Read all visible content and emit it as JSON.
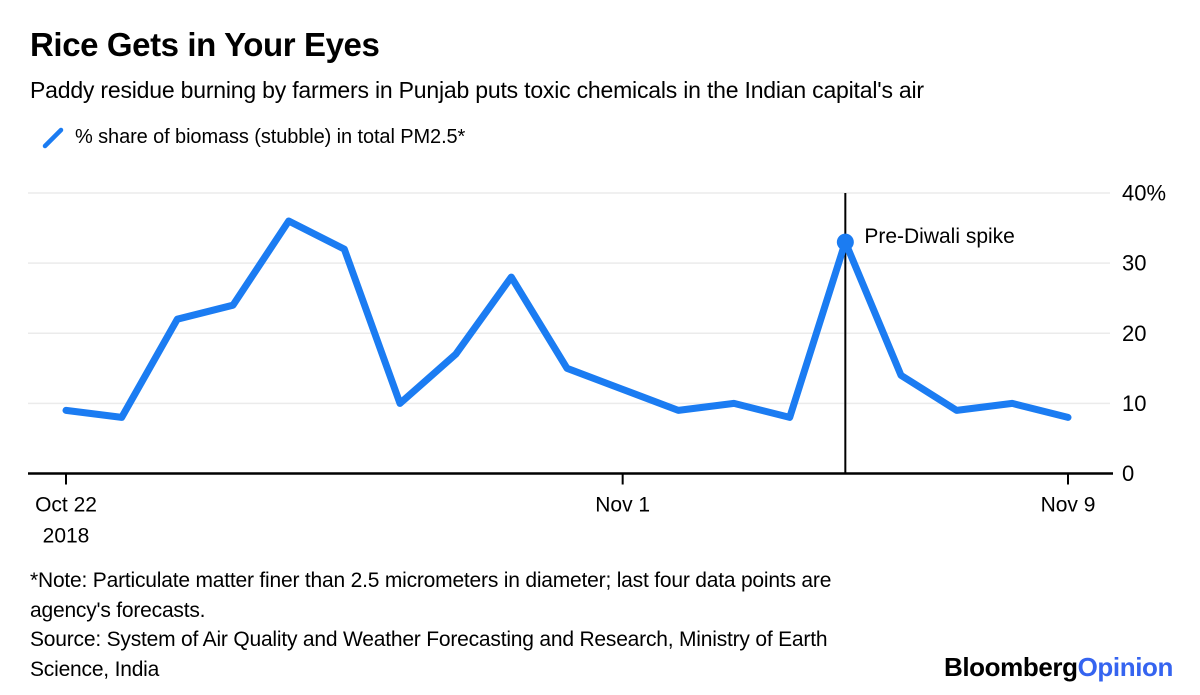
{
  "header": {
    "title": "Rice Gets in Your Eyes",
    "subtitle": "Paddy residue burning by farmers in Punjab puts toxic chemicals in the Indian capital's air"
  },
  "legend": {
    "label": "% share of biomass (stubble) in total PM2.5*",
    "marker_color": "#1b7cf2"
  },
  "chart_data": {
    "type": "line",
    "series_name": "% share of biomass (stubble) in total PM2.5*",
    "categories": [
      "Oct 22",
      "Oct 23",
      "Oct 24",
      "Oct 25",
      "Oct 26",
      "Oct 27",
      "Oct 28",
      "Oct 29",
      "Oct 30",
      "Oct 31",
      "Nov 1",
      "Nov 2",
      "Nov 3",
      "Nov 4",
      "Nov 5",
      "Nov 6",
      "Nov 7",
      "Nov 8",
      "Nov 9"
    ],
    "values": [
      9,
      8,
      22,
      24,
      36,
      32,
      10,
      17,
      28,
      15,
      12,
      9,
      10,
      8,
      33,
      14,
      9,
      10,
      8
    ],
    "ylim": [
      0,
      40
    ],
    "yticks": [
      {
        "value": 40,
        "label": "40%"
      },
      {
        "value": 30,
        "label": "30"
      },
      {
        "value": 20,
        "label": "20"
      },
      {
        "value": 10,
        "label": "10"
      },
      {
        "value": 0,
        "label": "0"
      }
    ],
    "xticks": [
      {
        "index": 0,
        "label": "Oct 22",
        "sublabel": "2018"
      },
      {
        "index": 10,
        "label": "Nov 1"
      },
      {
        "index": 18,
        "label": "Nov 9"
      }
    ],
    "annotation": {
      "index": 14,
      "value": 33,
      "label": "Pre-Diwali spike"
    },
    "line_color": "#1b7cf2",
    "grid_color": "#ebebeb",
    "axis_color": "#000000",
    "grid": true,
    "legend_position": "top-left"
  },
  "footnote": {
    "line1": "*Note: Particulate matter finer than 2.5 micrometers in diameter; last four data points are",
    "line2": "agency's forecasts."
  },
  "source": {
    "line1": "Source: System of Air Quality and Weather Forecasting and Research, Ministry of Earth",
    "line2": "Science, India"
  },
  "logo": {
    "text_black": "Bloomberg",
    "text_blue": "Opinion",
    "blue_color": "#3564f0"
  }
}
